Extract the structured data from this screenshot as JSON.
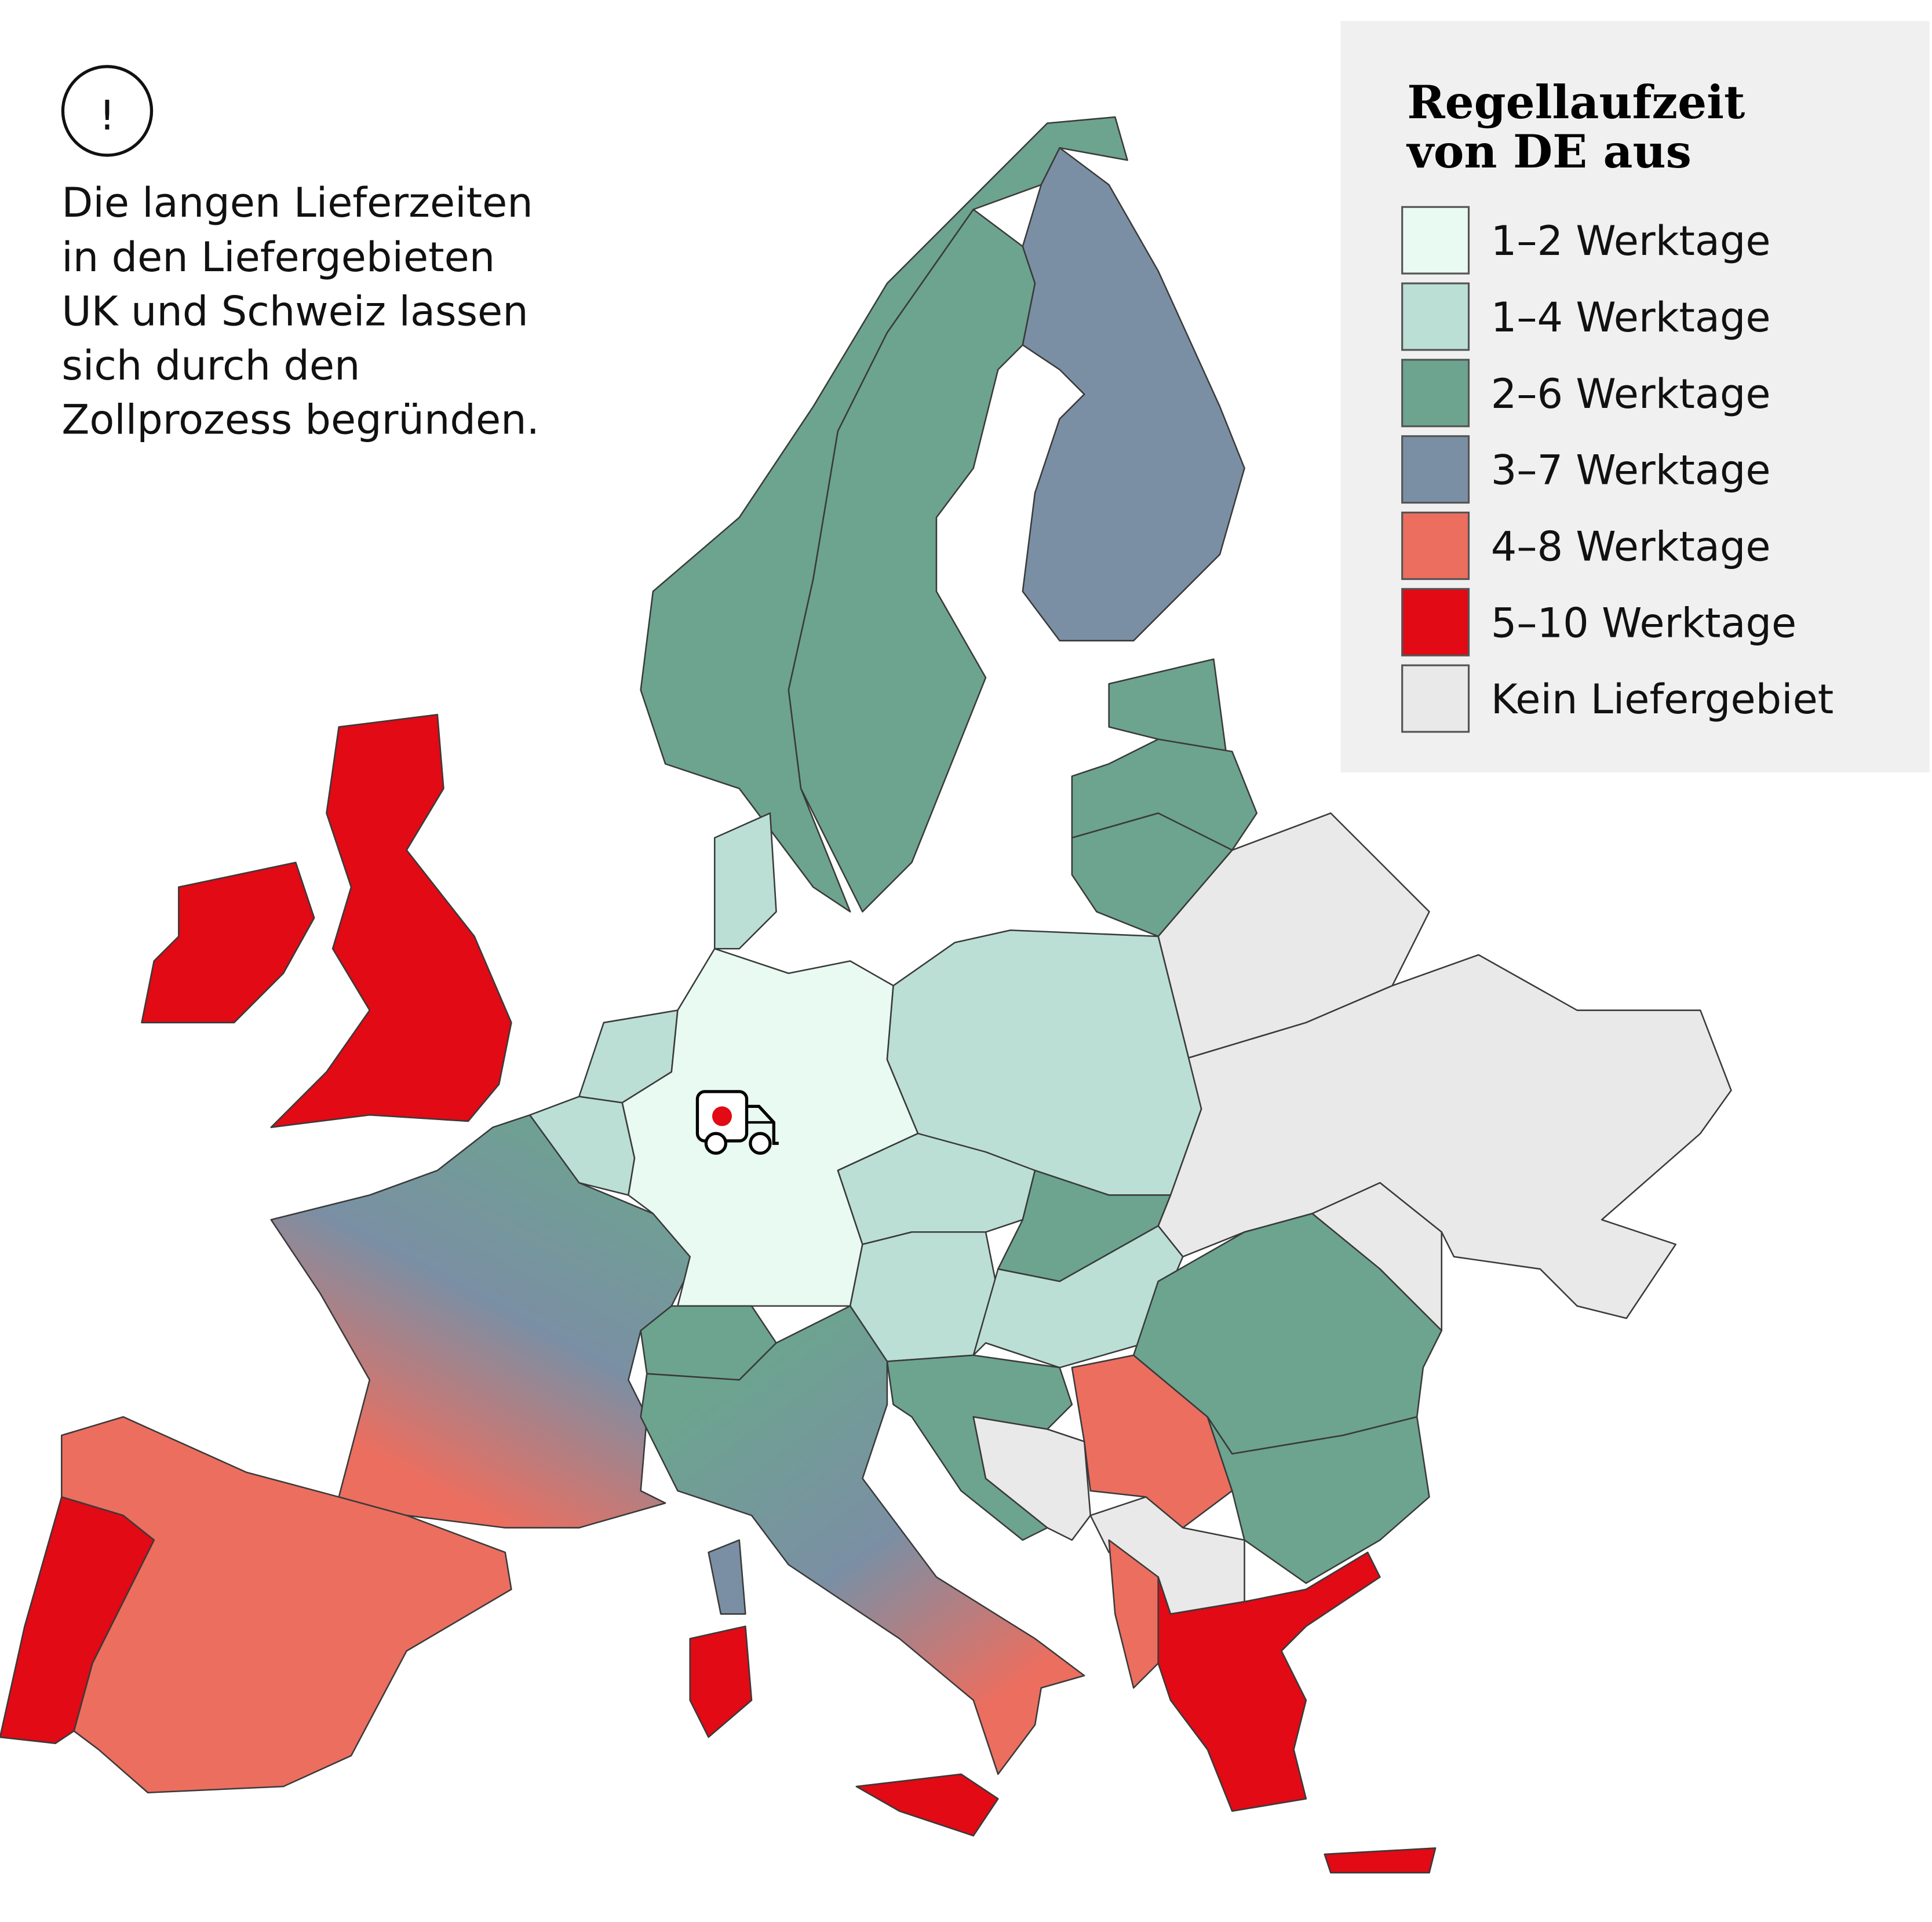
{
  "note": {
    "icon": "exclamation-circle-icon",
    "lines": [
      "Die langen Lieferzeiten",
      "in den Liefergebieten",
      "UK und Schweiz lassen",
      "sich durch den",
      "Zollprozess begründen."
    ]
  },
  "legend": {
    "title_lines": [
      "Regellaufzeit",
      "von DE aus"
    ],
    "items": [
      {
        "label": "1–2 Werktage",
        "color": "#e8faf1"
      },
      {
        "label": "1–4 Werktage",
        "color": "#bbdfd5"
      },
      {
        "label": "2–6 Werktage",
        "color": "#6ca48f"
      },
      {
        "label": "3–7 Werktage",
        "color": "#7b8fa4"
      },
      {
        "label": "4–8 Werktage",
        "color": "#ec6e5f"
      },
      {
        "label": "5–10 Werktage",
        "color": "#e10a15"
      },
      {
        "label": "Kein Liefergebiet",
        "color": "#e8e9e8"
      }
    ]
  },
  "map": {
    "origin_icon": "delivery-truck-icon",
    "countries": {
      "germany": "1–2 Werktage",
      "denmark": "1–4 Werktage",
      "netherlands": "1–4 Werktage",
      "belgium": "1–4 Werktage",
      "poland": "1–4 Werktage",
      "czechia": "1–4 Werktage",
      "austria": "1–4 Werktage",
      "hungary": "1–4 Werktage",
      "norway": "2–6 Werktage",
      "sweden": "2–6 Werktage",
      "estonia": "2–6 Werktage",
      "latvia": "2–6 Werktage",
      "lithuania": "2–6 Werktage",
      "switzerland": "2–6 Werktage",
      "slovakia": "2–6 Werktage",
      "slovenia-croatia": "2–6 Werktage",
      "romania": "2–6 Werktage",
      "bulgaria": "2–6 Werktage",
      "finland": "3–7 Werktage",
      "france": "2–6 bis 4–8 Werktage",
      "italy": "2–6 bis 4–8 Werktage",
      "spain": "4–8 Werktage",
      "serbia": "4–8 Werktage",
      "albania": "4–8 Werktage",
      "uk": "5–10 Werktage",
      "ireland": "5–10 Werktage",
      "portugal": "5–10 Werktage",
      "greece": "5–10 Werktage",
      "sicily": "5–10 Werktage",
      "sardinia": "5–10 Werktage",
      "crete": "5–10 Werktage",
      "belarus": "Kein Liefergebiet",
      "ukraine": "Kein Liefergebiet",
      "moldova": "Kein Liefergebiet",
      "bosnia": "Kein Liefergebiet",
      "kosovo-macedonia": "Kein Liefergebiet"
    }
  }
}
